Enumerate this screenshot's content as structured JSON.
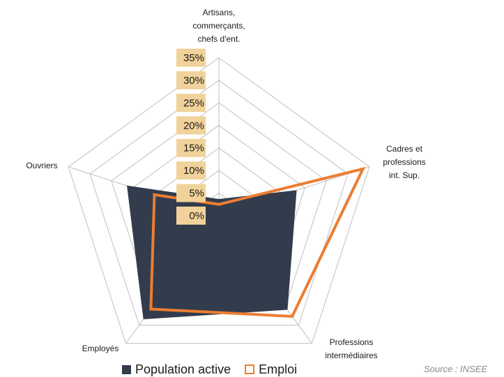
{
  "chart_data": {
    "type": "radar",
    "axes": [
      [
        "Artisans,",
        "commerçants,",
        "chefs d'ent."
      ],
      [
        "Cadres et",
        "professions",
        "int. Sup."
      ],
      [
        "Professions",
        "intermédiaires"
      ],
      [
        "Employés"
      ],
      [
        "Ouvriers"
      ]
    ],
    "ticks": [
      "0%",
      "5%",
      "10%",
      "15%",
      "20%",
      "25%",
      "30%",
      "35%"
    ],
    "tick_values": [
      0,
      5,
      10,
      15,
      20,
      25,
      30,
      35
    ],
    "rmax": 35,
    "series": [
      {
        "name": "Population active",
        "values": [
          3.6,
          18.0,
          25.7,
          28.3,
          21.3
        ],
        "color": "#323c4d",
        "style": "fill"
      },
      {
        "name": "Emploi",
        "values": [
          2.5,
          33.5,
          27.6,
          25.6,
          15.0
        ],
        "color": "#ec7d31",
        "style": "line"
      }
    ],
    "grid": true,
    "legend_position": "bottom",
    "tick_label_bg": "#f0d29a",
    "grid_color": "#bfbfbf"
  },
  "source": "Source : INSEE"
}
